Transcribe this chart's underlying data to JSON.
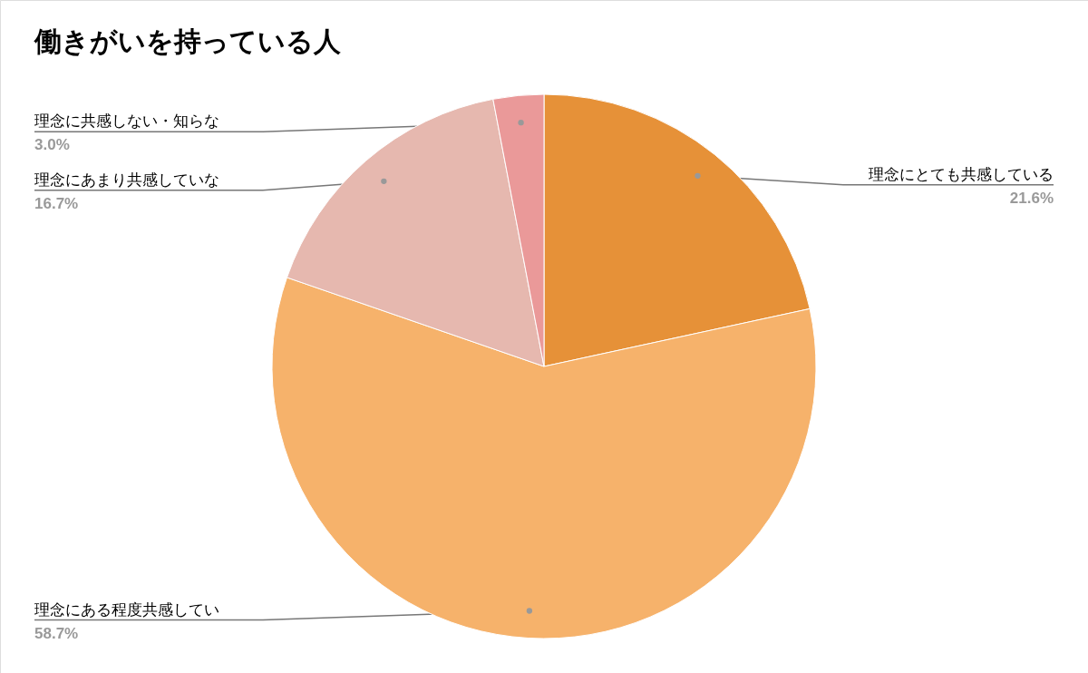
{
  "chart_data": {
    "type": "pie",
    "title": "働きがいを持っている人",
    "categories": [
      "理念にとても共感している",
      "理念にある程度共感してい",
      "理念にあまり共感していな",
      "理念に共感しない・知らな"
    ],
    "values": [
      21.6,
      58.7,
      16.7,
      3.0
    ],
    "value_labels": [
      "21.6%",
      "58.7%",
      "16.7%",
      "3.0%"
    ],
    "colors": [
      "#e69138",
      "#f6b26b",
      "#e6b8af",
      "#ea9999"
    ],
    "legend": false
  }
}
